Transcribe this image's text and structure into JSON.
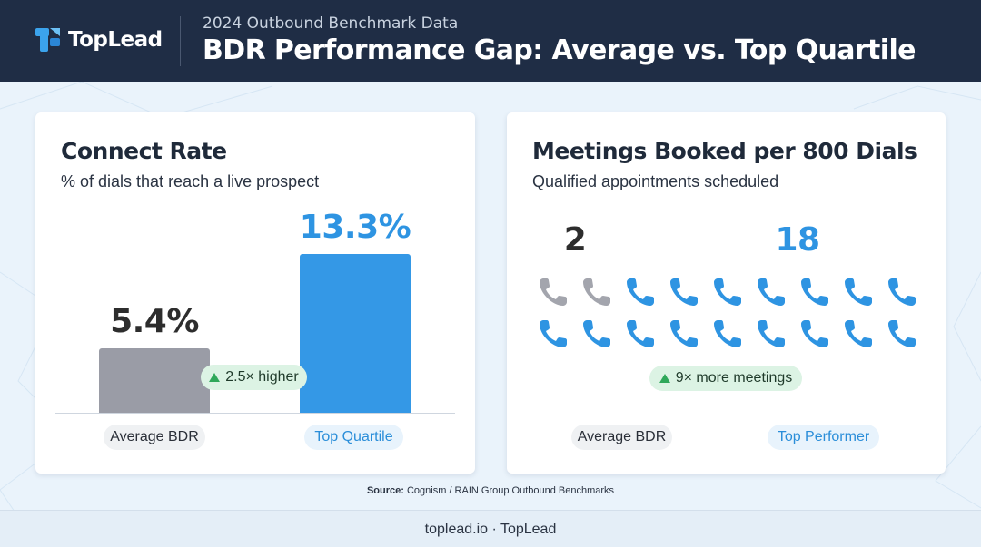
{
  "brand": {
    "name": "TopLead",
    "accent": "#3498e6",
    "header_bg": "#1f2d45"
  },
  "header": {
    "kicker": "2024 Outbound Benchmark Data",
    "title": "BDR Performance Gap: Average vs. Top Quartile"
  },
  "chart_data": [
    {
      "type": "bar",
      "title": "Connect Rate",
      "subtitle": "% of dials that reach a live prospect",
      "categories": [
        "Average BDR",
        "Top Quartile"
      ],
      "values": [
        5.4,
        13.3
      ],
      "value_labels": [
        "5.4%",
        "13.3%"
      ],
      "colors": [
        "#9a9ca6",
        "#3498e6"
      ],
      "ylim": [
        0,
        14.4
      ],
      "annotation": "2.5× higher"
    },
    {
      "type": "pictogram",
      "title": "Meetings Booked per 800 Dials",
      "subtitle": "Qualified appointments scheduled",
      "categories": [
        "Average BDR",
        "Top Performer"
      ],
      "values": [
        2,
        18
      ],
      "value_labels": [
        "2",
        "18"
      ],
      "colors": [
        "#a3a5ad",
        "#2e94e2"
      ],
      "icon": "phone-icon",
      "total_icons": 18,
      "annotation": "9× more meetings"
    }
  ],
  "source": {
    "prefix": "Source:",
    "text": "Cognism / RAIN Group Outbound Benchmarks"
  },
  "footer": {
    "text": "toplead.io · TopLead"
  }
}
